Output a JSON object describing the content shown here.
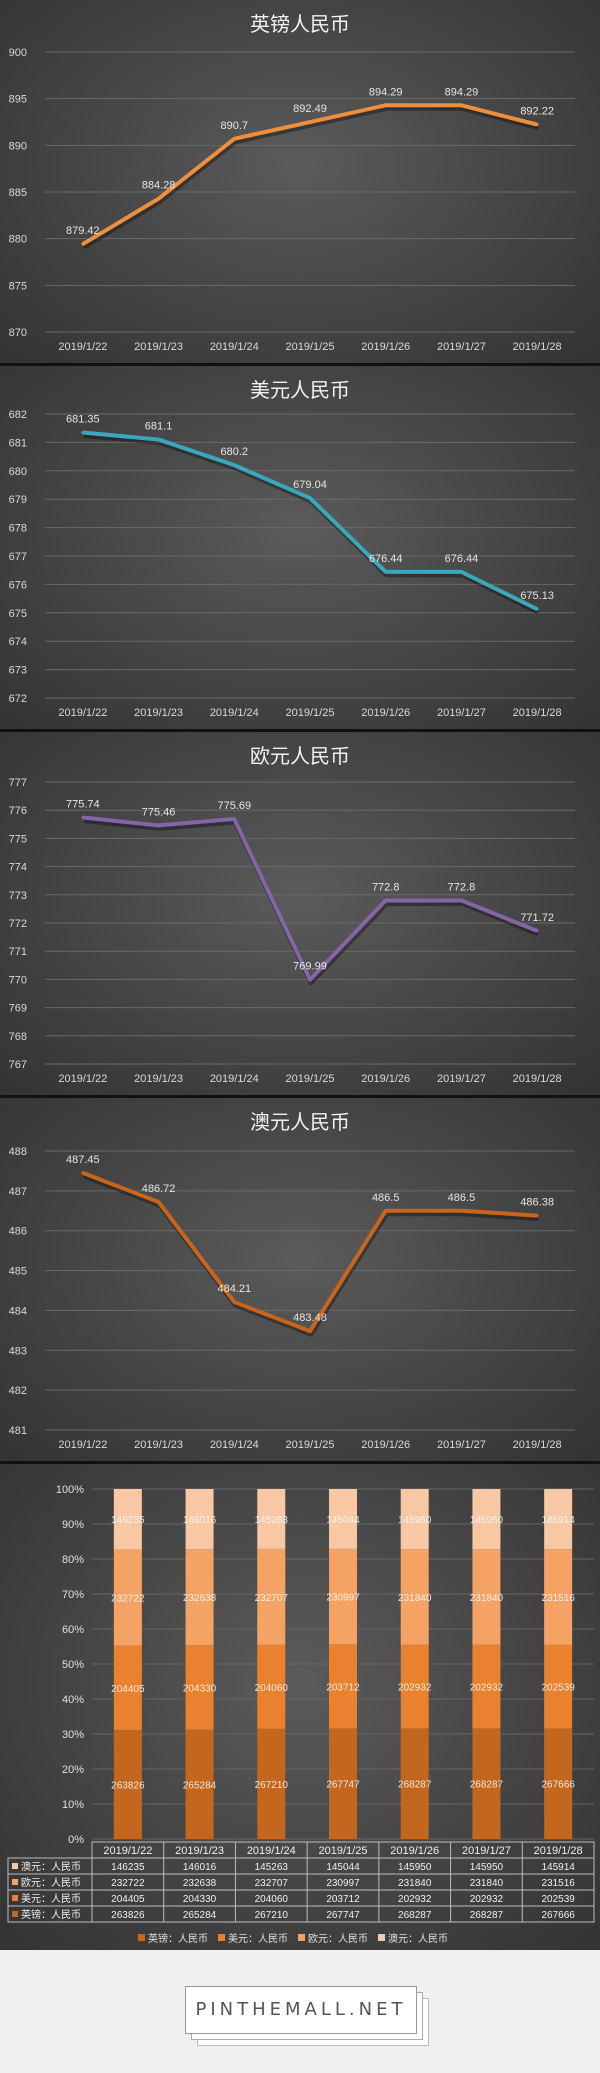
{
  "chart_data": [
    {
      "type": "line",
      "title": "英镑人民币",
      "categories": [
        "2019/1/22",
        "2019/1/23",
        "2019/1/24",
        "2019/1/25",
        "2019/1/26",
        "2019/1/27",
        "2019/1/28"
      ],
      "values": [
        879.42,
        884.28,
        890.7,
        892.49,
        894.29,
        894.29,
        892.22
      ],
      "labels": [
        "879.42",
        "884.28",
        "890.7",
        "892.49",
        "894.29",
        "894.29",
        "892.22"
      ],
      "ylim": [
        870,
        900
      ],
      "yticks": [
        870,
        875,
        880,
        885,
        890,
        895,
        900
      ],
      "color": "#ef8f3e",
      "grid": true
    },
    {
      "type": "line",
      "title": "美元人民币",
      "categories": [
        "2019/1/22",
        "2019/1/23",
        "2019/1/24",
        "2019/1/25",
        "2019/1/26",
        "2019/1/27",
        "2019/1/28"
      ],
      "values": [
        681.35,
        681.1,
        680.2,
        679.04,
        676.44,
        676.44,
        675.13
      ],
      "labels": [
        "681.35",
        "681.1",
        "680.2",
        "679.04",
        "676.44",
        "676.44",
        "675.13"
      ],
      "ylim": [
        672,
        682
      ],
      "yticks": [
        672,
        673,
        674,
        675,
        676,
        677,
        678,
        679,
        680,
        681,
        682
      ],
      "color": "#39a7be",
      "grid": true
    },
    {
      "type": "line",
      "title": "欧元人民币",
      "categories": [
        "2019/1/22",
        "2019/1/23",
        "2019/1/24",
        "2019/1/25",
        "2019/1/26",
        "2019/1/27",
        "2019/1/28"
      ],
      "values": [
        775.74,
        775.46,
        775.69,
        769.99,
        772.8,
        772.8,
        771.72
      ],
      "labels": [
        "775.74",
        "775.46",
        "775.69",
        "769.99",
        "772.8",
        "772.8",
        "771.72"
      ],
      "ylim": [
        767,
        777
      ],
      "yticks": [
        767,
        768,
        769,
        770,
        771,
        772,
        773,
        774,
        775,
        776,
        777
      ],
      "color": "#8466a8",
      "grid": true
    },
    {
      "type": "line",
      "title": "澳元人民币",
      "categories": [
        "2019/1/22",
        "2019/1/23",
        "2019/1/24",
        "2019/1/25",
        "2019/1/26",
        "2019/1/27",
        "2019/1/28"
      ],
      "values": [
        487.45,
        486.72,
        484.21,
        483.48,
        486.5,
        486.5,
        486.38
      ],
      "labels": [
        "487.45",
        "486.72",
        "484.21",
        "483.48",
        "486.5",
        "486.5",
        "486.38"
      ],
      "ylim": [
        481,
        488
      ],
      "yticks": [
        481,
        482,
        483,
        484,
        485,
        486,
        487,
        488
      ],
      "color": "#c8651b",
      "grid": true
    },
    {
      "type": "bar",
      "stacked": "percent",
      "title": "",
      "categories": [
        "2019/1/22",
        "2019/1/23",
        "2019/1/24",
        "2019/1/25",
        "2019/1/26",
        "2019/1/27",
        "2019/1/28"
      ],
      "yticks": [
        "0%",
        "10%",
        "20%",
        "30%",
        "40%",
        "50%",
        "60%",
        "70%",
        "80%",
        "90%",
        "100%"
      ],
      "series": [
        {
          "name": "英镑：人民币",
          "values": [
            263826,
            265284,
            267210,
            267747,
            268287,
            268287,
            267666
          ],
          "color": "#c4671e"
        },
        {
          "name": "美元：人民币",
          "values": [
            204405,
            204330,
            204060,
            203712,
            202932,
            202932,
            202539
          ],
          "color": "#e9812e"
        },
        {
          "name": "欧元：人民币",
          "values": [
            232722,
            232638,
            232707,
            230997,
            231840,
            231840,
            231516
          ],
          "color": "#f5a364"
        },
        {
          "name": "澳元：人民币",
          "values": [
            146235,
            146016,
            145263,
            145044,
            145950,
            145950,
            145914
          ],
          "color": "#f8c7a3"
        }
      ],
      "legend": "bottom",
      "data_table": true
    }
  ],
  "watermark": "PINTHEMALL.NET"
}
